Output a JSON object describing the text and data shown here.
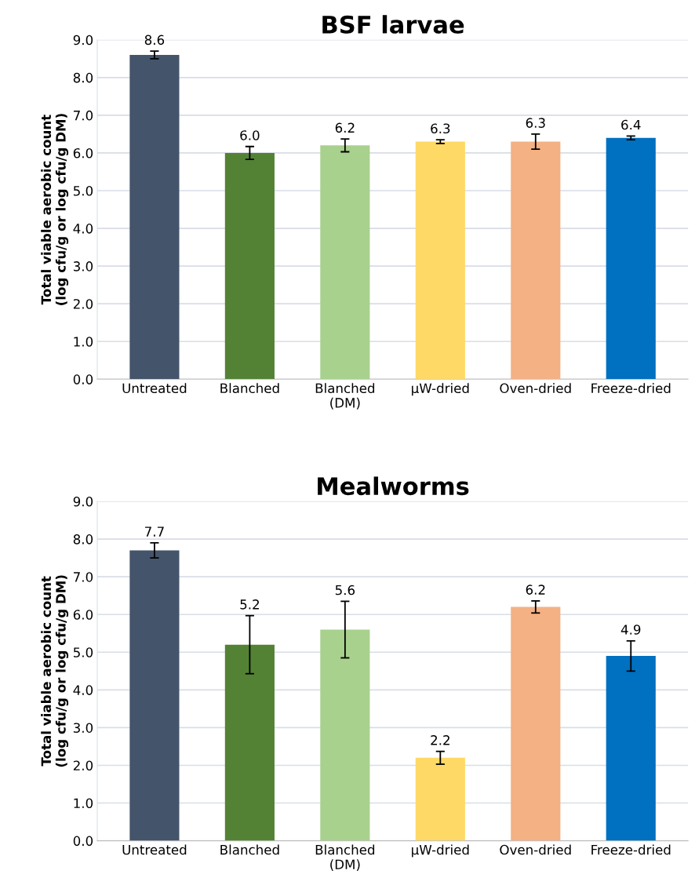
{
  "chart_data": [
    {
      "type": "bar",
      "title": "BSF larvae",
      "ylabel": "Total viable aerobic count\n(log cfu/g or log cfu/g DM)",
      "categories": [
        "Untreated",
        "Blanched",
        "Blanched\n(DM)",
        "µW-dried",
        "Oven-dried",
        "Freeze-dried"
      ],
      "values": [
        8.6,
        6.0,
        6.2,
        6.3,
        6.3,
        6.4
      ],
      "colors": [
        "#44546a",
        "#548235",
        "#a9d18e",
        "#ffd966",
        "#f4b183",
        "#0070c0"
      ],
      "errors": [
        0.1,
        0.17,
        0.17,
        0.05,
        0.2,
        0.05
      ],
      "value_labels": [
        "8.6",
        "6.0",
        "6.2",
        "6.3",
        "6.3",
        "6.4"
      ],
      "grid": "y",
      "ylim": [
        0,
        9
      ],
      "yticks": [
        {
          "value": 0,
          "label": "0.0"
        },
        {
          "value": 1,
          "label": "1.0"
        },
        {
          "value": 2,
          "label": "2.0"
        },
        {
          "value": 3,
          "label": "3.0"
        },
        {
          "value": 4,
          "label": "4.0"
        },
        {
          "value": 5,
          "label": "5.0"
        },
        {
          "value": 6,
          "label": "6.0"
        },
        {
          "value": 7,
          "label": "7.0"
        },
        {
          "value": 8,
          "label": "8.0"
        },
        {
          "value": 9,
          "label": "9.0"
        }
      ]
    },
    {
      "type": "bar",
      "title": "Mealworms",
      "ylabel": "Total viable aerobic count\n(log cfu/g or log cfu/g DM)",
      "categories": [
        "Untreated",
        "Blanched",
        "Blanched\n(DM)",
        "µW-dried",
        "Oven-dried",
        "Freeze-dried"
      ],
      "values": [
        7.7,
        5.2,
        5.6,
        2.2,
        6.2,
        4.9
      ],
      "colors": [
        "#44546a",
        "#548235",
        "#a9d18e",
        "#ffd966",
        "#f4b183",
        "#0070c0"
      ],
      "errors": [
        0.2,
        0.77,
        0.75,
        0.17,
        0.16,
        0.4
      ],
      "value_labels": [
        "7.7",
        "5.2",
        "5.6",
        "2.2",
        "6.2",
        "4.9"
      ],
      "grid": "y",
      "ylim": [
        0,
        9
      ],
      "yticks": [
        {
          "value": 0,
          "label": "0.0"
        },
        {
          "value": 1,
          "label": "1.0"
        },
        {
          "value": 2,
          "label": "2.0"
        },
        {
          "value": 3,
          "label": "3.0"
        },
        {
          "value": 4,
          "label": "4.0"
        },
        {
          "value": 5,
          "label": "5.0"
        },
        {
          "value": 6,
          "label": "6.0"
        },
        {
          "value": 7,
          "label": "7.0"
        },
        {
          "value": 8,
          "label": "8.0"
        },
        {
          "value": 9,
          "label": "9.0"
        }
      ]
    }
  ]
}
